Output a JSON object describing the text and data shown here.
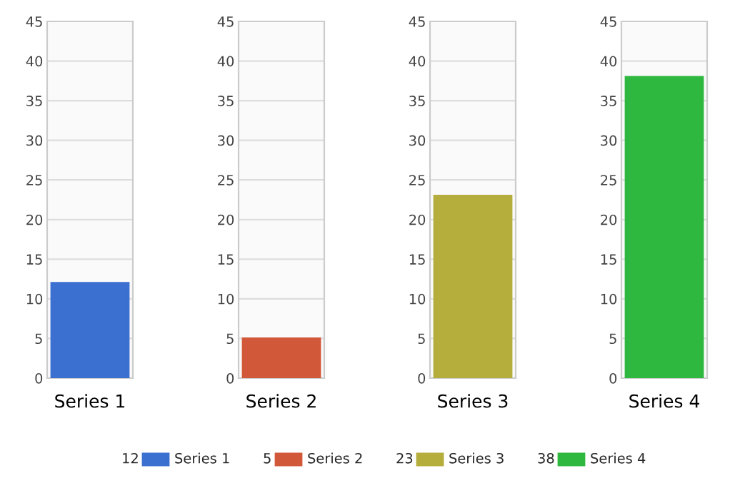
{
  "chart_data": [
    {
      "type": "bar",
      "categories": [
        "Series 1"
      ],
      "series": [
        {
          "name": "Series 1",
          "color": "#3b6fd0",
          "values": [
            12
          ]
        }
      ],
      "value_labels": [
        "12"
      ],
      "ylim": [
        0,
        45
      ],
      "yticks": [
        0,
        5,
        10,
        15,
        20,
        25,
        30,
        35,
        40,
        45
      ],
      "grid": "y",
      "legend": "bottom"
    },
    {
      "type": "bar",
      "categories": [
        "Series 2"
      ],
      "series": [
        {
          "name": "Series 2",
          "color": "#d2583a",
          "values": [
            5
          ]
        }
      ],
      "value_labels": [
        "5"
      ],
      "ylim": [
        0,
        45
      ],
      "yticks": [
        0,
        5,
        10,
        15,
        20,
        25,
        30,
        35,
        40,
        45
      ],
      "grid": "y",
      "legend": "bottom"
    },
    {
      "type": "bar",
      "categories": [
        "Series 3"
      ],
      "series": [
        {
          "name": "Series 3",
          "color": "#b5ad3c",
          "values": [
            23
          ]
        }
      ],
      "value_labels": [
        "23"
      ],
      "ylim": [
        0,
        45
      ],
      "yticks": [
        0,
        5,
        10,
        15,
        20,
        25,
        30,
        35,
        40,
        45
      ],
      "grid": "y",
      "legend": "bottom"
    },
    {
      "type": "bar",
      "categories": [
        "Series 4"
      ],
      "series": [
        {
          "name": "Series 4",
          "color": "#2fb83f",
          "values": [
            38
          ]
        }
      ],
      "value_labels": [
        "38"
      ],
      "ylim": [
        0,
        45
      ],
      "yticks": [
        0,
        5,
        10,
        15,
        20,
        25,
        30,
        35,
        40,
        45
      ],
      "grid": "y",
      "legend": "bottom"
    }
  ]
}
